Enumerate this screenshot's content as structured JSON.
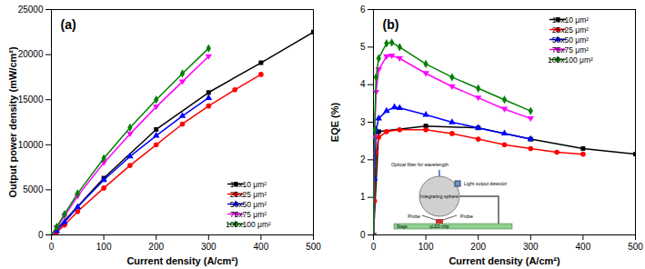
{
  "chart_data": [
    {
      "type": "line",
      "title": "(a)",
      "x_label": "Current density (A/cm²)",
      "y_label": "Output power density (mW/cm²)",
      "xlim": [
        0,
        500
      ],
      "xticks": [
        0,
        100,
        200,
        300,
        400,
        500
      ],
      "ylim": [
        0,
        25000
      ],
      "yticks": [
        0,
        5000,
        10000,
        15000,
        20000,
        25000
      ],
      "legend": "bottom-right",
      "series": [
        {
          "name": "10x10 μm²",
          "color": "#000000",
          "marker": "square",
          "x": [
            0,
            100,
            200,
            300,
            400,
            500
          ],
          "values": [
            0,
            6300,
            11700,
            15800,
            19100,
            22500
          ]
        },
        {
          "name": "25x25 μm²",
          "color": "#ff0000",
          "marker": "circle",
          "x": [
            0,
            10,
            25,
            50,
            100,
            150,
            200,
            250,
            300,
            350,
            400
          ],
          "values": [
            0,
            300,
            1100,
            2600,
            5200,
            7700,
            10000,
            12300,
            14300,
            16100,
            17800
          ]
        },
        {
          "name": "50x50 μm²",
          "color": "#0000ff",
          "marker": "triangle",
          "x": [
            0,
            10,
            25,
            50,
            100,
            150,
            200,
            250,
            300
          ],
          "values": [
            0,
            450,
            1400,
            3100,
            6100,
            8700,
            11000,
            13200,
            15200
          ]
        },
        {
          "name": "75x75 μm²",
          "color": "#ff00ff",
          "marker": "triangle-down",
          "x": [
            0,
            10,
            25,
            50,
            100,
            150,
            200,
            250,
            300
          ],
          "values": [
            0,
            800,
            2100,
            4300,
            8000,
            11200,
            14200,
            17000,
            19800
          ]
        },
        {
          "name": "100x100 μm²",
          "color": "#008000",
          "marker": "diamond",
          "x": [
            0,
            10,
            25,
            50,
            100,
            150,
            200,
            250,
            300
          ],
          "values": [
            0,
            900,
            2300,
            4600,
            8500,
            11900,
            15000,
            17900,
            20700
          ]
        }
      ]
    },
    {
      "type": "line",
      "title": "(b)",
      "x_label": "Current density (A/cm²)",
      "y_label": "EQE (%)",
      "xlim": [
        0,
        500
      ],
      "xticks": [
        0,
        100,
        200,
        300,
        400,
        500
      ],
      "ylim": [
        0,
        6
      ],
      "yticks": [
        0,
        1,
        2,
        3,
        4,
        5,
        6
      ],
      "legend": "top-right",
      "annotations": [
        "Optical fiber for wavelength",
        "Light output detector",
        "Integrating sphere",
        "Probe",
        "Probe",
        "μLED chip",
        "Stage"
      ],
      "series": [
        {
          "name": "10x10 μm²",
          "color": "#000000",
          "marker": "square",
          "x": [
            0,
            10,
            100,
            200,
            300,
            400,
            500
          ],
          "values": [
            0,
            2.75,
            2.9,
            2.85,
            2.55,
            2.3,
            2.15
          ]
        },
        {
          "name": "25x25 μm²",
          "color": "#ff0000",
          "marker": "circle",
          "x": [
            0,
            2,
            5,
            10,
            25,
            50,
            100,
            150,
            200,
            250,
            300,
            350,
            400
          ],
          "values": [
            0,
            0.9,
            2.2,
            2.6,
            2.75,
            2.8,
            2.8,
            2.7,
            2.55,
            2.4,
            2.3,
            2.2,
            2.15
          ]
        },
        {
          "name": "50x50 μm²",
          "color": "#0000ff",
          "marker": "triangle",
          "x": [
            0,
            2,
            5,
            10,
            25,
            40,
            50,
            100,
            150,
            200,
            250,
            300
          ],
          "values": [
            0,
            1.5,
            2.8,
            3.1,
            3.3,
            3.4,
            3.38,
            3.2,
            3.0,
            2.85,
            2.7,
            2.55
          ]
        },
        {
          "name": "75x75 μm²",
          "color": "#ff00ff",
          "marker": "triangle-down",
          "x": [
            0,
            2,
            5,
            10,
            25,
            35,
            50,
            100,
            150,
            200,
            250,
            300
          ],
          "values": [
            0,
            2.6,
            3.8,
            4.4,
            4.75,
            4.77,
            4.7,
            4.3,
            3.95,
            3.65,
            3.35,
            3.1
          ]
        },
        {
          "name": "100x100 μm²",
          "color": "#008000",
          "marker": "diamond",
          "x": [
            0,
            2,
            5,
            10,
            25,
            35,
            50,
            100,
            150,
            200,
            250,
            300
          ],
          "values": [
            0,
            2.8,
            4.2,
            4.7,
            5.1,
            5.12,
            5.0,
            4.55,
            4.2,
            3.9,
            3.6,
            3.3
          ]
        }
      ]
    }
  ]
}
